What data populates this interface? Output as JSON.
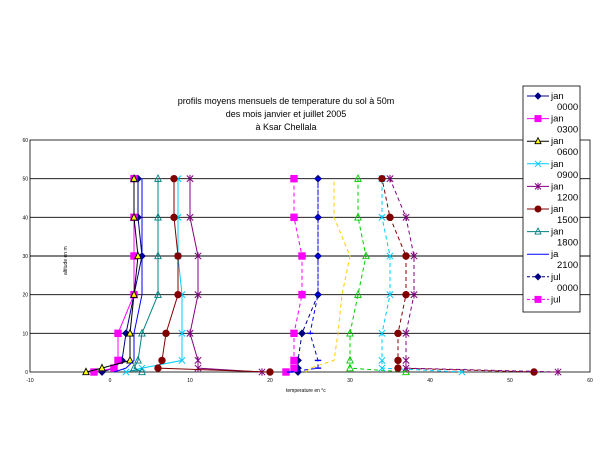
{
  "chart_data": {
    "type": "line",
    "title_lines": [
      "profils moyens mensuels de temperature du sol à 50m",
      "des mois  janvier et juillet 2005",
      "à Ksar Chellala"
    ],
    "xlabel": "temperature en °c",
    "ylabel": "altitude en m",
    "xlim": [
      -10,
      60
    ],
    "ylim": [
      0,
      60
    ],
    "x_ticks": [
      -10,
      0,
      10,
      20,
      30,
      40,
      50,
      60
    ],
    "y_ticks": [
      0,
      10,
      20,
      30,
      40,
      50,
      60
    ],
    "grid": "horizontal",
    "legend_position": "right",
    "altitudes": [
      0,
      1,
      3,
      10,
      20,
      30,
      40,
      50
    ],
    "series": [
      {
        "name": "jan 0000",
        "color": "#000080",
        "marker": "diamond",
        "dash": "solid",
        "values": [
          -1,
          0.5,
          1.5,
          2,
          3,
          4,
          3.5,
          3.5
        ]
      },
      {
        "name": "jan 0300",
        "color": "#ff00ff",
        "marker": "square",
        "dash": "solid",
        "values": [
          -2,
          0.5,
          1,
          1,
          3,
          3,
          3,
          3
        ]
      },
      {
        "name": "jan 0600",
        "color": "#000000",
        "marker": "triangle",
        "dash": "solid",
        "fill": "#ffff00",
        "values": [
          -3,
          -1,
          2.5,
          2.5,
          3,
          3.5,
          3,
          3
        ]
      },
      {
        "name": "jan 0900",
        "color": "#00ccff",
        "marker": "x",
        "dash": "solid",
        "values": [
          2,
          4,
          9,
          9,
          9,
          8.5,
          8.5,
          8.5
        ]
      },
      {
        "name": "jan 1200",
        "color": "#800080",
        "marker": "star",
        "dash": "solid",
        "values": [
          19,
          11,
          11,
          10,
          11,
          11,
          10,
          10
        ]
      },
      {
        "name": "jan 1500",
        "color": "#800000",
        "marker": "circle",
        "dash": "solid",
        "values": [
          20,
          6,
          6.5,
          7,
          8.5,
          8.5,
          8,
          8
        ]
      },
      {
        "name": "jan 1800",
        "color": "#008080",
        "marker": "triangle-open",
        "dash": "solid",
        "values": [
          4,
          3,
          3.5,
          4,
          6,
          6,
          6,
          6
        ]
      },
      {
        "name": "ja 2100",
        "color": "#0000ff",
        "marker": "none",
        "dash": "solid",
        "values": [
          0.5,
          2,
          3,
          3,
          4,
          4,
          4,
          4
        ]
      },
      {
        "name": "jul 0000",
        "color": "#000080",
        "marker": "diamond",
        "dash": "dashed",
        "values": [
          23.5,
          23.5,
          23.5,
          24,
          26,
          26,
          26,
          26
        ]
      },
      {
        "name": "jul",
        "color": "#ff00ff",
        "marker": "square",
        "dash": "dashed",
        "values": [
          22,
          23,
          23,
          23,
          24,
          24,
          23,
          23
        ]
      }
    ],
    "extra_series": [
      {
        "color": "#ffcc00",
        "marker": "none",
        "dash": "dashed",
        "values": [
          24.5,
          25,
          28,
          28.5,
          29,
          30,
          28,
          28
        ]
      },
      {
        "color": "#00cc00",
        "marker": "triangle-open",
        "dash": "dashed",
        "values": [
          37,
          30,
          30,
          30,
          31,
          32,
          31,
          31
        ]
      },
      {
        "color": "#00ccff",
        "marker": "x",
        "dash": "dashed",
        "values": [
          44,
          34,
          34,
          34,
          35,
          35,
          34,
          34
        ]
      },
      {
        "color": "#800000",
        "marker": "circle",
        "dash": "dashed",
        "values": [
          53,
          36,
          36,
          36,
          37,
          37,
          35,
          34
        ]
      },
      {
        "color": "#800080",
        "marker": "star",
        "dash": "dashed",
        "values": [
          56,
          37,
          37,
          37,
          38,
          38,
          37,
          35
        ]
      },
      {
        "color": "#0000ff",
        "marker": "dash",
        "dash": "dashed",
        "values": [
          22.5,
          26,
          26,
          25,
          26,
          26,
          26,
          26
        ]
      }
    ]
  }
}
